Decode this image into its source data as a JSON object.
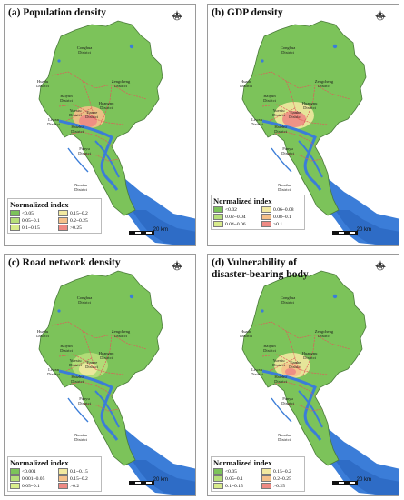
{
  "districts": {
    "conghua": "Conghua\nDistrict",
    "huadu": "Huadu\nDistrict",
    "zengcheng": "Zengcheng\nDistrict",
    "baiyun": "Baiyun\nDistrict",
    "huangpu": "Huangpu\nDistrict",
    "tianhe": "Tianhe\nDistrict",
    "liwan": "Liwan\nDistrict",
    "yuexiu": "Yuexiu\nDistrict",
    "haizhu": "Haizhu\nDistrict",
    "panyu": "Panyu\nDistrict",
    "nansha": "Nansha\nDistrict"
  },
  "scale_label": "20 km",
  "colors": {
    "water": "#3b7dd8",
    "boundary": "#e05a5a",
    "base": "#7cc35a",
    "low": "#b7df7a",
    "mid": "#f2e9a0",
    "high": "#f5c08a",
    "vhigh": "#ee8a84",
    "top": "#e0584e"
  },
  "panels": [
    {
      "title": "(a) Population density",
      "legend_title": "Normalized index",
      "legend": [
        {
          "label": "<0.05",
          "color": "#7cc35a"
        },
        {
          "label": "0.15~0.2",
          "color": "#f2e9a0"
        },
        {
          "label": "0.05~0.1",
          "color": "#b7df7a"
        },
        {
          "label": "0.2~0.25",
          "color": "#f5c08a"
        },
        {
          "label": "0.1~0.15",
          "color": "#d9ec8c"
        },
        {
          "label": ">0.25",
          "color": "#ee8a84"
        }
      ]
    },
    {
      "title": "(b) GDP density",
      "legend_title": "Normalized index",
      "legend": [
        {
          "label": "<0.02",
          "color": "#7cc35a"
        },
        {
          "label": "0.06~0.08",
          "color": "#f2e9a0"
        },
        {
          "label": "0.02~0.04",
          "color": "#b7df7a"
        },
        {
          "label": "0.08~0.1",
          "color": "#f5c08a"
        },
        {
          "label": "0.04~0.06",
          "color": "#d9ec8c"
        },
        {
          "label": ">0.1",
          "color": "#ee8a84"
        }
      ]
    },
    {
      "title": "(c) Road network density",
      "legend_title": "Normalized index",
      "legend": [
        {
          "label": "<0.001",
          "color": "#7cc35a"
        },
        {
          "label": "0.1~0.15",
          "color": "#f2e9a0"
        },
        {
          "label": "0.001~0.05",
          "color": "#b7df7a"
        },
        {
          "label": "0.15~0.2",
          "color": "#f5c08a"
        },
        {
          "label": "0.05~0.1",
          "color": "#d9ec8c"
        },
        {
          "label": ">0.2",
          "color": "#ee8a84"
        }
      ]
    },
    {
      "title_line1": "(d) Vulnerability of",
      "title_line2": "disaster-bearing body",
      "legend_title": "Normalized index",
      "legend": [
        {
          "label": "<0.05",
          "color": "#7cc35a"
        },
        {
          "label": "0.15~0.2",
          "color": "#f2e9a0"
        },
        {
          "label": "0.05~0.1",
          "color": "#b7df7a"
        },
        {
          "label": "0.2~0.25",
          "color": "#f5c08a"
        },
        {
          "label": "0.1~0.15",
          "color": "#d9ec8c"
        },
        {
          "label": ">0.25",
          "color": "#ee8a84"
        }
      ]
    }
  ]
}
